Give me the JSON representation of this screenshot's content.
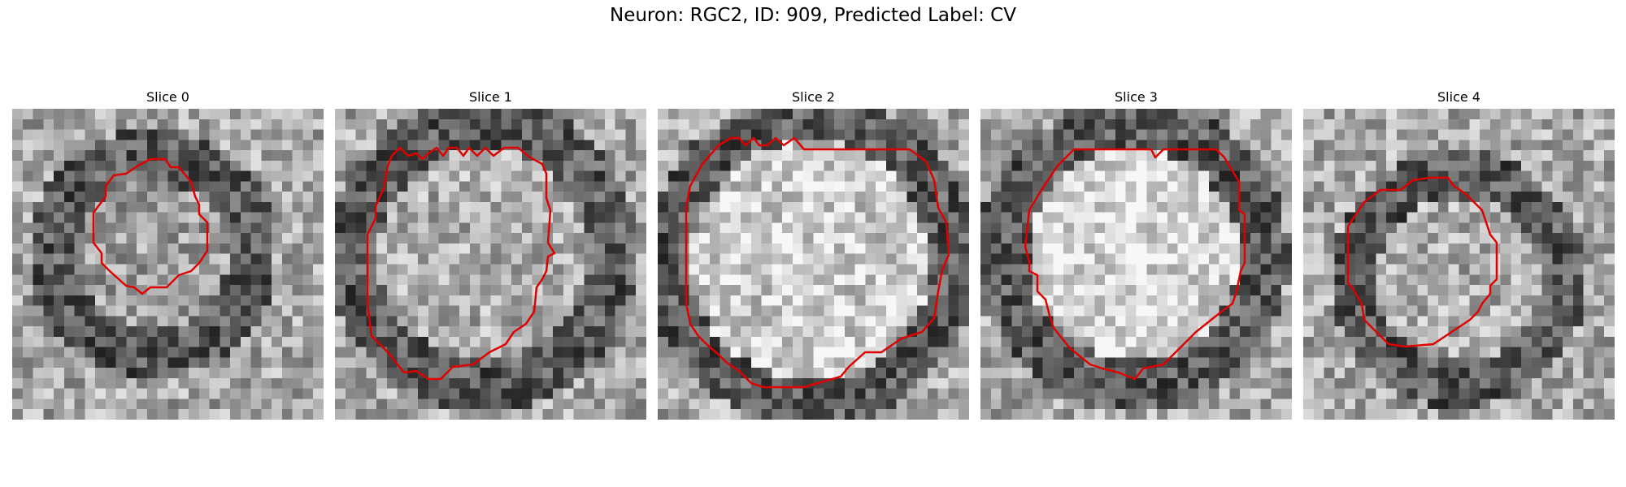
{
  "figure": {
    "title": "Neuron: RGC2, ID: 909, Predicted Label: CV"
  },
  "slices": [
    {
      "label": "Slice 0"
    },
    {
      "label": "Slice 1"
    },
    {
      "label": "Slice 2"
    },
    {
      "label": "Slice 3"
    },
    {
      "label": "Slice 4"
    }
  ],
  "contour_color": "#e00000",
  "colormap": "grayscale"
}
